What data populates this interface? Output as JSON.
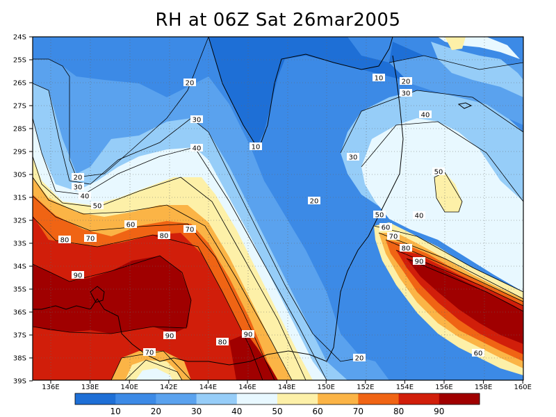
{
  "title": "RH at 06Z Sat 26mar2005",
  "map": {
    "lat_ticks": [
      "24S",
      "25S",
      "26S",
      "27S",
      "28S",
      "29S",
      "30S",
      "31S",
      "32S",
      "33S",
      "34S",
      "35S",
      "36S",
      "37S",
      "38S",
      "39S"
    ],
    "lon_ticks": [
      "136E",
      "138E",
      "140E",
      "142E",
      "144E",
      "146E",
      "148E",
      "150E",
      "152E",
      "154E",
      "156E",
      "158E",
      "160E"
    ],
    "contour_labels": [
      {
        "text": "10"
      },
      {
        "text": "10"
      },
      {
        "text": "20"
      },
      {
        "text": "20"
      },
      {
        "text": "20"
      },
      {
        "text": "20"
      },
      {
        "text": "20"
      },
      {
        "text": "30"
      },
      {
        "text": "30"
      },
      {
        "text": "30"
      },
      {
        "text": "30"
      },
      {
        "text": "40"
      },
      {
        "text": "40"
      },
      {
        "text": "40"
      },
      {
        "text": "40"
      },
      {
        "text": "50"
      },
      {
        "text": "50"
      },
      {
        "text": "50"
      },
      {
        "text": "60"
      },
      {
        "text": "60"
      },
      {
        "text": "60"
      },
      {
        "text": "70"
      },
      {
        "text": "70"
      },
      {
        "text": "70"
      },
      {
        "text": "70"
      },
      {
        "text": "80"
      },
      {
        "text": "80"
      },
      {
        "text": "80"
      },
      {
        "text": "80"
      },
      {
        "text": "90"
      },
      {
        "text": "90"
      },
      {
        "text": "90"
      },
      {
        "text": "90"
      }
    ]
  },
  "colorbar": {
    "labels": [
      "10",
      "20",
      "30",
      "40",
      "50",
      "60",
      "70",
      "80",
      "90"
    ],
    "colors": [
      "#1e6fd6",
      "#3c8ae6",
      "#5aa2ee",
      "#96cdf8",
      "#e8f8ff",
      "#fdf0a8",
      "#fbb446",
      "#f06414",
      "#d11e0a",
      "#a00000"
    ]
  }
}
